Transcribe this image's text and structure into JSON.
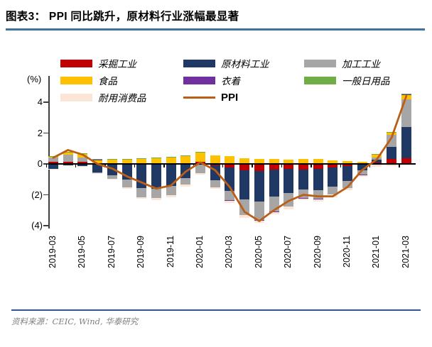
{
  "title": "图表3：  PPI 同比跳升，原材料行业涨幅最显著",
  "source": "资料来源：CEIC, Wind,  华泰研究",
  "y_axis": {
    "unit": "(%)",
    "ticks": [
      {
        "value": 4,
        "label": "4"
      },
      {
        "value": 2,
        "label": "2"
      },
      {
        "value": 0,
        "label": "0"
      },
      {
        "value": -2,
        "label": "(2)"
      },
      {
        "value": -4,
        "label": "(4)"
      }
    ]
  },
  "legend": {
    "columns": [
      [
        {
          "label": "采掘工业",
          "color": "#C00000",
          "type": "box"
        },
        {
          "label": "食品",
          "color": "#FFC000",
          "type": "box"
        },
        {
          "label": "耐用消费品",
          "color": "#FBE5D6",
          "type": "box"
        }
      ],
      [
        {
          "label": "原材料工业",
          "color": "#1F3864",
          "type": "box"
        },
        {
          "label": "衣着",
          "color": "#7030A0",
          "type": "box"
        },
        {
          "label": "PPI",
          "color": "#BC5E15",
          "type": "line"
        }
      ],
      [
        {
          "label": "加工工业",
          "color": "#A6A6A6",
          "type": "box"
        },
        {
          "label": "一般日用品",
          "color": "#70AD47",
          "type": "box"
        }
      ]
    ]
  },
  "chart_data": {
    "type": "bar",
    "subtype": "stacked-bar-with-line",
    "title": "PPI 同比跳升，原材料行业涨幅最显著",
    "ylabel": "(%)",
    "ylim": [
      -4.2,
      5.7
    ],
    "grid": false,
    "x_label_interval": 2,
    "categories": [
      "2019-03",
      "2019-04",
      "2019-05",
      "2019-06",
      "2019-07",
      "2019-08",
      "2019-09",
      "2019-10",
      "2019-11",
      "2019-12",
      "2020-01",
      "2020-02",
      "2020-03",
      "2020-04",
      "2020-05",
      "2020-06",
      "2020-07",
      "2020-08",
      "2020-09",
      "2020-10",
      "2020-11",
      "2020-12",
      "2021-01",
      "2021-02",
      "2021-03"
    ],
    "series": [
      {
        "name": "采掘工业",
        "color": "#C00000",
        "values": [
          0.15,
          0.15,
          0.13,
          0.05,
          0.03,
          -0.03,
          -0.05,
          -0.05,
          -0.03,
          0.03,
          0.15,
          -0.1,
          -0.25,
          -0.4,
          -0.45,
          -0.35,
          -0.3,
          -0.35,
          -0.3,
          -0.25,
          -0.15,
          -0.05,
          0.07,
          0.33,
          0.35
        ]
      },
      {
        "name": "原材料工业",
        "color": "#1F3864",
        "values": [
          -0.3,
          -0.1,
          -0.15,
          -0.55,
          -0.75,
          -1.0,
          -1.5,
          -1.55,
          -1.4,
          -0.9,
          -0.05,
          -0.95,
          -1.5,
          -1.9,
          -2.0,
          -1.75,
          -1.6,
          -1.3,
          -1.4,
          -1.2,
          -0.95,
          -0.35,
          0.2,
          0.77,
          2.05
        ]
      },
      {
        "name": "加工工业",
        "color": "#A6A6A6",
        "values": [
          0.27,
          0.45,
          0.3,
          -0.06,
          -0.2,
          -0.5,
          -0.6,
          -0.6,
          -0.6,
          -0.45,
          -0.55,
          -0.45,
          -0.6,
          -1.0,
          -1.2,
          -1.0,
          -0.85,
          -0.55,
          -0.55,
          -0.55,
          -0.45,
          -0.3,
          0.15,
          0.8,
          1.8
        ]
      },
      {
        "name": "食品",
        "color": "#FFC000",
        "values": [
          0.05,
          0.15,
          0.22,
          0.22,
          0.25,
          0.3,
          0.35,
          0.4,
          0.45,
          0.5,
          0.6,
          0.57,
          0.5,
          0.37,
          0.3,
          0.3,
          0.28,
          0.32,
          0.3,
          0.25,
          0.2,
          0.15,
          0.2,
          0.15,
          0.3
        ]
      },
      {
        "name": "衣着",
        "color": "#7030A0",
        "values": [
          0.03,
          0.03,
          0.02,
          0.02,
          0.01,
          0.01,
          0.01,
          0.01,
          0.01,
          0.01,
          0.01,
          -0.01,
          -0.03,
          -0.03,
          -0.03,
          -0.03,
          -0.03,
          -0.03,
          -0.03,
          -0.03,
          -0.03,
          -0.02,
          -0.05,
          -0.03,
          0.02
        ]
      },
      {
        "name": "一般日用品",
        "color": "#70AD47",
        "values": [
          0.02,
          0.02,
          0.02,
          0.02,
          0.02,
          0.02,
          0.02,
          0.02,
          0.02,
          0.02,
          0.02,
          0.01,
          0.01,
          0.01,
          0.01,
          0.01,
          0.01,
          0.01,
          0.01,
          0.01,
          0.01,
          0.01,
          0.02,
          0.02,
          0.05
        ]
      },
      {
        "name": "耐用消费品",
        "color": "#FBE5D6",
        "values": [
          -0.03,
          -0.02,
          -0.03,
          -0.04,
          -0.06,
          -0.1,
          -0.1,
          -0.15,
          -0.15,
          -0.1,
          -0.1,
          -0.12,
          -0.15,
          -0.15,
          -0.15,
          -0.15,
          -0.15,
          -0.12,
          -0.15,
          -0.12,
          -0.12,
          -0.1,
          -0.12,
          -0.1,
          -0.05
        ]
      }
    ],
    "line": {
      "name": "PPI",
      "color": "#BC5E15",
      "values": [
        0.4,
        0.9,
        0.6,
        0.0,
        -0.3,
        -0.8,
        -1.2,
        -1.6,
        -1.4,
        -0.5,
        0.1,
        -0.4,
        -1.5,
        -3.1,
        -3.7,
        -3.0,
        -2.4,
        -2.0,
        -2.1,
        -2.1,
        -1.5,
        -0.4,
        0.3,
        1.7,
        4.4
      ]
    }
  }
}
